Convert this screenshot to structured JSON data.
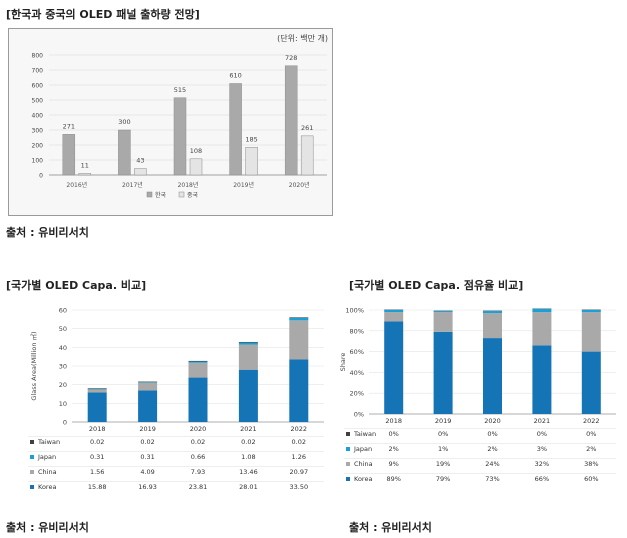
{
  "top": {
    "title": "[한국과 중국의 OLED 패널 출하량 전망]",
    "unit": "(단위: 백만 개)",
    "source": "출처 : 유비리서치",
    "chart_data": {
      "type": "bar",
      "categories": [
        "2016년",
        "2017년",
        "2018년",
        "2019년",
        "2020년"
      ],
      "series": [
        {
          "name": "한국",
          "values": [
            271,
            300,
            515,
            610,
            728
          ],
          "color": "#a9a9a9"
        },
        {
          "name": "중국",
          "values": [
            11,
            43,
            108,
            185,
            261
          ],
          "color": "#e4e4e4"
        }
      ],
      "ylim": [
        0,
        800
      ],
      "yticks": [
        "0",
        "100",
        "200",
        "300",
        "400",
        "500",
        "600",
        "700",
        "800"
      ],
      "grid": true,
      "legend": "bottom"
    }
  },
  "left": {
    "title": "[국가별 OLED Capa. 비교]",
    "source": "출처 : 유비리서치",
    "chart_data": {
      "type": "bar",
      "stacked": true,
      "categories": [
        "2018",
        "2019",
        "2020",
        "2021",
        "2022"
      ],
      "ylabel": "Glass Area(Million ㎡)",
      "ylim": [
        0,
        60
      ],
      "yticks": [
        "0",
        "10",
        "20",
        "30",
        "40",
        "50",
        "60"
      ],
      "series": [
        {
          "name": "Taiwan",
          "values": [
            0.02,
            0.02,
            0.02,
            0.02,
            0.02
          ],
          "labels": [
            "0.02",
            "0.02",
            "0.02",
            "0.02",
            "0.02"
          ],
          "color": "#404040"
        },
        {
          "name": "Japan",
          "values": [
            0.31,
            0.31,
            0.66,
            1.08,
            1.26
          ],
          "labels": [
            "0.31",
            "0.31",
            "0.66",
            "1.08",
            "1.26"
          ],
          "color": "#1aa0d8"
        },
        {
          "name": "China",
          "values": [
            1.56,
            4.09,
            7.93,
            13.46,
            20.97
          ],
          "labels": [
            "1.56",
            "4.09",
            "7.93",
            "13.46",
            "20.97"
          ],
          "color": "#a9a9a9"
        },
        {
          "name": "Korea",
          "values": [
            15.88,
            16.93,
            23.81,
            28.01,
            33.5
          ],
          "labels": [
            "15.88",
            "16.93",
            "23.81",
            "28.01",
            "33.50"
          ],
          "color": "#1474b5"
        }
      ],
      "legend": "table-below"
    }
  },
  "right": {
    "title": "[국가별 OLED Capa. 점유율 비교]",
    "source": "출처 : 유비리서치",
    "chart_data": {
      "type": "bar",
      "stacked": true,
      "percent": true,
      "categories": [
        "2018",
        "2019",
        "2020",
        "2021",
        "2022"
      ],
      "ylabel": "Share",
      "ylim": [
        0,
        100
      ],
      "yticks": [
        "0%",
        "20%",
        "40%",
        "60%",
        "80%",
        "100%"
      ],
      "series": [
        {
          "name": "Taiwan",
          "values": [
            0,
            0,
            0,
            0,
            0
          ],
          "labels": [
            "0%",
            "0%",
            "0%",
            "0%",
            "0%"
          ],
          "color": "#404040"
        },
        {
          "name": "Japan",
          "values": [
            2,
            1,
            2,
            3,
            2
          ],
          "labels": [
            "2%",
            "1%",
            "2%",
            "3%",
            "2%"
          ],
          "color": "#1aa0d8"
        },
        {
          "name": "China",
          "values": [
            9,
            19,
            24,
            32,
            38
          ],
          "labels": [
            "9%",
            "19%",
            "24%",
            "32%",
            "38%"
          ],
          "color": "#a9a9a9"
        },
        {
          "name": "Korea",
          "values": [
            89,
            79,
            73,
            66,
            60
          ],
          "labels": [
            "89%",
            "79%",
            "73%",
            "66%",
            "60%"
          ],
          "color": "#1474b5"
        }
      ],
      "legend": "table-below"
    }
  }
}
